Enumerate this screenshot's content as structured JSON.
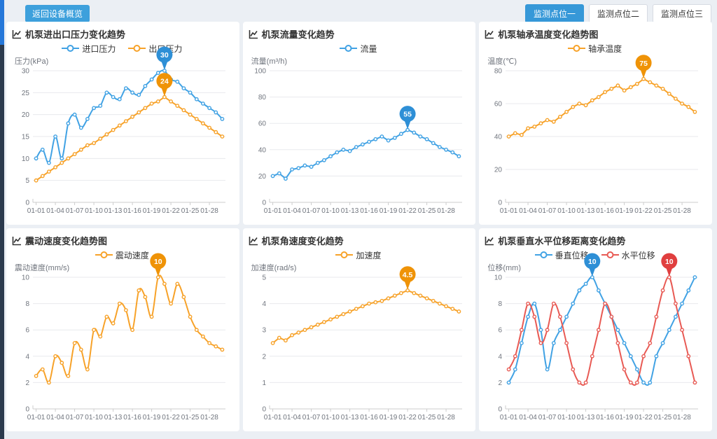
{
  "page": {
    "back_button": "返回设备概览",
    "tabs": [
      {
        "label": "监测点位一",
        "active": true
      },
      {
        "label": "监测点位二",
        "active": false
      },
      {
        "label": "监测点位三",
        "active": false
      }
    ]
  },
  "colors": {
    "accent_blue": "#3698d8",
    "series_blue": "#41a2e4",
    "series_orange": "#f7a229",
    "series_red": "#e85a54",
    "pin_blue": "#2e8fd6",
    "pin_orange": "#ef9307",
    "pin_red": "#e03f3f",
    "grid_line": "#e8eaed",
    "axis_line": "#cccccc",
    "axis_text": "#70757e"
  },
  "axis": {
    "categories": [
      "01-01",
      "01-02",
      "01-03",
      "01-04",
      "01-05",
      "01-06",
      "01-07",
      "01-08",
      "01-09",
      "01-10",
      "01-11",
      "01-12",
      "01-13",
      "01-14",
      "01-15",
      "01-16",
      "01-17",
      "01-18",
      "01-19",
      "01-20",
      "01-21",
      "01-22",
      "01-23",
      "01-24",
      "01-25",
      "01-26",
      "01-27",
      "01-28",
      "01-29",
      "01-30"
    ],
    "label_step": 3
  },
  "chart_data": [
    {
      "type": "line",
      "title": "机泵进出口压力变化趋势",
      "y_name": "压力(kPa)",
      "y_max": 30,
      "y_step": 5,
      "series": [
        {
          "name": "进口压力",
          "color": "#41a2e4",
          "smooth": true,
          "values": [
            10,
            12,
            9,
            15,
            10,
            18,
            20,
            17,
            19,
            21.5,
            22,
            25,
            24,
            23.5,
            26,
            25,
            24.5,
            26.5,
            28,
            29.5,
            30,
            28,
            27.5,
            26,
            25,
            23.5,
            22.5,
            21.5,
            20.5,
            19
          ],
          "max_pin": {
            "label": "30",
            "color": "#2e8fd6"
          }
        },
        {
          "name": "出口压力",
          "color": "#f7a229",
          "smooth": false,
          "values": [
            5,
            6,
            7,
            8,
            9,
            10,
            11,
            12,
            13,
            13.5,
            14.5,
            15.5,
            16.5,
            17.5,
            18.5,
            19.5,
            20.5,
            21.5,
            22.5,
            23,
            24,
            23,
            22,
            21,
            20,
            19,
            18,
            17,
            16,
            15
          ],
          "max_pin": {
            "label": "24",
            "color": "#ef9307"
          }
        }
      ]
    },
    {
      "type": "line",
      "title": "机泵流量变化趋势",
      "y_name": "流量(m³/h)",
      "y_max": 100,
      "y_step": 20,
      "series": [
        {
          "name": "流量",
          "color": "#41a2e4",
          "smooth": false,
          "values": [
            20,
            22,
            18,
            25,
            26,
            28,
            27,
            30,
            32,
            35,
            38,
            40,
            39,
            42,
            44,
            46,
            48,
            50,
            47,
            49,
            52,
            55,
            53,
            50,
            48,
            45,
            42,
            40,
            38,
            35
          ],
          "max_pin": {
            "label": "55",
            "color": "#2e8fd6"
          }
        }
      ]
    },
    {
      "type": "line",
      "title": "机泵轴承温度变化趋势图",
      "y_name": "温度(℃)",
      "y_max": 80,
      "y_step": 20,
      "series": [
        {
          "name": "轴承温度",
          "color": "#f7a229",
          "smooth": false,
          "values": [
            40,
            42,
            41,
            45,
            46,
            48,
            50,
            49,
            52,
            55,
            58,
            60,
            59,
            62,
            64,
            67,
            69,
            71,
            68,
            70,
            72,
            75,
            73,
            71,
            69,
            66,
            63,
            60,
            58,
            55
          ],
          "max_pin": {
            "label": "75",
            "color": "#ef9307"
          }
        }
      ]
    },
    {
      "type": "line",
      "title": "震动速度变化趋势图",
      "y_name": "震动速度(mm/s)",
      "y_max": 10,
      "y_step": 2,
      "series": [
        {
          "name": "震动速度",
          "color": "#f7a229",
          "smooth": true,
          "values": [
            2.5,
            3,
            2,
            4,
            3.5,
            2.5,
            5,
            4.5,
            3,
            6,
            5.5,
            7,
            6.5,
            8,
            7.5,
            6,
            9,
            8.5,
            7,
            10,
            9.5,
            8,
            9.5,
            8.5,
            7,
            6,
            5.5,
            5,
            4.75,
            4.5
          ],
          "max_pin": {
            "label": "10",
            "color": "#ef9307"
          }
        }
      ]
    },
    {
      "type": "line",
      "title": "机泵角速度变化趋势",
      "y_name": "加速度(rad/s)",
      "y_max": 5,
      "y_step": 1,
      "series": [
        {
          "name": "加速度",
          "color": "#f7a229",
          "smooth": false,
          "values": [
            2.5,
            2.7,
            2.6,
            2.8,
            2.9,
            3,
            3.1,
            3.2,
            3.3,
            3.4,
            3.5,
            3.6,
            3.7,
            3.8,
            3.9,
            4,
            4.05,
            4.1,
            4.2,
            4.3,
            4.4,
            4.5,
            4.4,
            4.3,
            4.2,
            4.1,
            4,
            3.9,
            3.8,
            3.7
          ],
          "max_pin": {
            "label": "4.5",
            "color": "#ef9307"
          }
        }
      ]
    },
    {
      "type": "line",
      "title": "机泵垂直水平位移距离变化趋势",
      "y_name": "位移(mm)",
      "y_max": 10,
      "y_step": 2,
      "series": [
        {
          "name": "垂直位移",
          "color": "#41a2e4",
          "smooth": true,
          "values": [
            2,
            3,
            5,
            7,
            8,
            6,
            3,
            5,
            6,
            7,
            8,
            9,
            9.5,
            10,
            9,
            8,
            7,
            6,
            5,
            4,
            3,
            2,
            2,
            4,
            5,
            6,
            7,
            8,
            9,
            10
          ],
          "max_pin": {
            "label": "10",
            "color": "#2e8fd6"
          }
        },
        {
          "name": "水平位移",
          "color": "#e85a54",
          "smooth": true,
          "values": [
            3,
            4,
            6,
            8,
            7,
            5,
            6,
            8,
            7,
            5,
            3,
            2,
            2,
            4,
            6,
            8,
            7,
            5,
            3,
            2,
            2,
            4,
            5,
            7,
            9,
            10,
            8,
            6,
            4,
            2
          ],
          "max_pin": {
            "label": "10",
            "color": "#e03f3f"
          }
        }
      ]
    }
  ]
}
